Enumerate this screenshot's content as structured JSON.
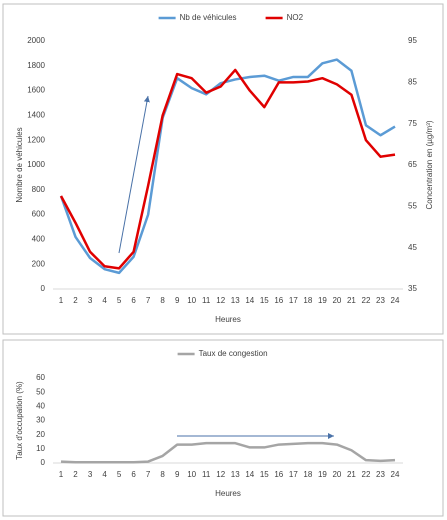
{
  "chart_data": [
    {
      "type": "line",
      "categories": [
        1,
        2,
        3,
        4,
        5,
        6,
        7,
        8,
        9,
        10,
        11,
        12,
        13,
        14,
        15,
        16,
        17,
        18,
        19,
        20,
        21,
        22,
        23,
        24
      ],
      "series": [
        {
          "name": "Nb de véhicules",
          "color": "#5b9bd5",
          "values": [
            750,
            420,
            250,
            160,
            130,
            260,
            600,
            1380,
            1700,
            1620,
            1570,
            1660,
            1690,
            1710,
            1720,
            1680,
            1710,
            1710,
            1820,
            1850,
            1760,
            1320,
            1240,
            1310
          ]
        },
        {
          "name": "NO2",
          "color": "#e00000",
          "axis": "y2",
          "values": [
            57.5,
            51,
            44,
            40.5,
            40,
            44,
            60,
            77,
            87,
            86,
            82.5,
            84,
            88,
            83,
            79,
            85,
            85,
            85.2,
            86,
            84.5,
            82,
            71,
            67,
            67.5
          ]
        }
      ],
      "ylim": [
        0,
        2000
      ],
      "yticks": [
        0,
        200,
        400,
        600,
        800,
        1000,
        1200,
        1400,
        1600,
        1800,
        2000
      ],
      "y2lim": [
        35,
        95
      ],
      "y2ticks": [
        35,
        45,
        55,
        65,
        75,
        85,
        95
      ],
      "xlabel": "Heures",
      "ylabel": "Nombre de véhicules",
      "y2label": "Concentration en (µg/m³)",
      "legend": "top",
      "grid": false
    },
    {
      "type": "line",
      "categories": [
        1,
        2,
        3,
        4,
        5,
        6,
        7,
        8,
        9,
        10,
        11,
        12,
        13,
        14,
        15,
        16,
        17,
        18,
        19,
        20,
        21,
        22,
        23,
        24
      ],
      "series": [
        {
          "name": "Taux de congestion",
          "color": "#a5a5a5",
          "values": [
            1,
            0.5,
            0.5,
            0.5,
            0.5,
            0.5,
            1,
            5,
            13,
            13,
            14,
            14,
            14,
            11,
            11,
            13,
            13.5,
            14,
            14,
            13,
            9,
            2,
            1.5,
            2
          ]
        }
      ],
      "ylim": [
        0,
        60
      ],
      "yticks": [
        0,
        10,
        20,
        30,
        40,
        50,
        60
      ],
      "xlabel": "Heures",
      "ylabel": "Taux d'occupation (%)",
      "legend": "top",
      "grid": false
    }
  ]
}
